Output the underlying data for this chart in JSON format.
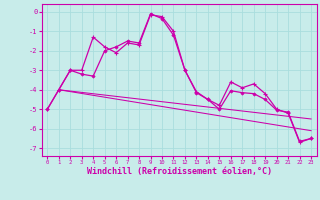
{
  "background_color": "#c8ecea",
  "grid_color": "#aadddd",
  "line_color": "#cc00aa",
  "x_ticks": [
    0,
    1,
    2,
    3,
    4,
    5,
    6,
    7,
    8,
    9,
    10,
    11,
    12,
    13,
    14,
    15,
    16,
    17,
    18,
    19,
    20,
    21,
    22,
    23
  ],
  "y_ticks": [
    0,
    -1,
    -2,
    -3,
    -4,
    -5,
    -6,
    -7
  ],
  "xlim": [
    -0.5,
    23.5
  ],
  "ylim": [
    -7.4,
    0.4
  ],
  "xlabel": "Windchill (Refroidissement éolien,°C)",
  "series1_x": [
    0,
    1,
    2,
    3,
    4,
    5,
    6,
    7,
    8,
    9,
    10,
    11,
    12,
    13,
    14,
    15,
    16,
    17,
    18,
    19,
    20,
    21,
    22,
    23
  ],
  "series1_y": [
    -5.0,
    -4.0,
    -3.0,
    -3.0,
    -1.3,
    -1.8,
    -2.1,
    -1.6,
    -1.7,
    -0.15,
    -0.25,
    -1.0,
    -3.0,
    -4.1,
    -4.5,
    -4.8,
    -3.6,
    -3.9,
    -3.7,
    -4.2,
    -5.0,
    -5.2,
    -6.7,
    -6.5
  ],
  "series2_x": [
    0,
    1,
    2,
    3,
    4,
    5,
    6,
    7,
    8,
    9,
    10,
    11,
    12,
    13,
    14,
    15,
    16,
    17,
    18,
    19,
    20,
    21,
    22,
    23
  ],
  "series2_y": [
    -5.0,
    -4.0,
    -3.0,
    -3.2,
    -3.3,
    -2.0,
    -1.8,
    -1.5,
    -1.6,
    -0.1,
    -0.35,
    -1.2,
    -3.0,
    -4.15,
    -4.5,
    -5.0,
    -4.05,
    -4.15,
    -4.2,
    -4.5,
    -5.05,
    -5.15,
    -6.65,
    -6.5
  ],
  "trend_x": [
    1,
    23
  ],
  "trend_y": [
    -4.0,
    -6.1
  ],
  "trend2_x": [
    1,
    23
  ],
  "trend2_y": [
    -4.0,
    -5.5
  ],
  "xlabel_fontsize": 6,
  "xlabel_fontweight": "bold"
}
